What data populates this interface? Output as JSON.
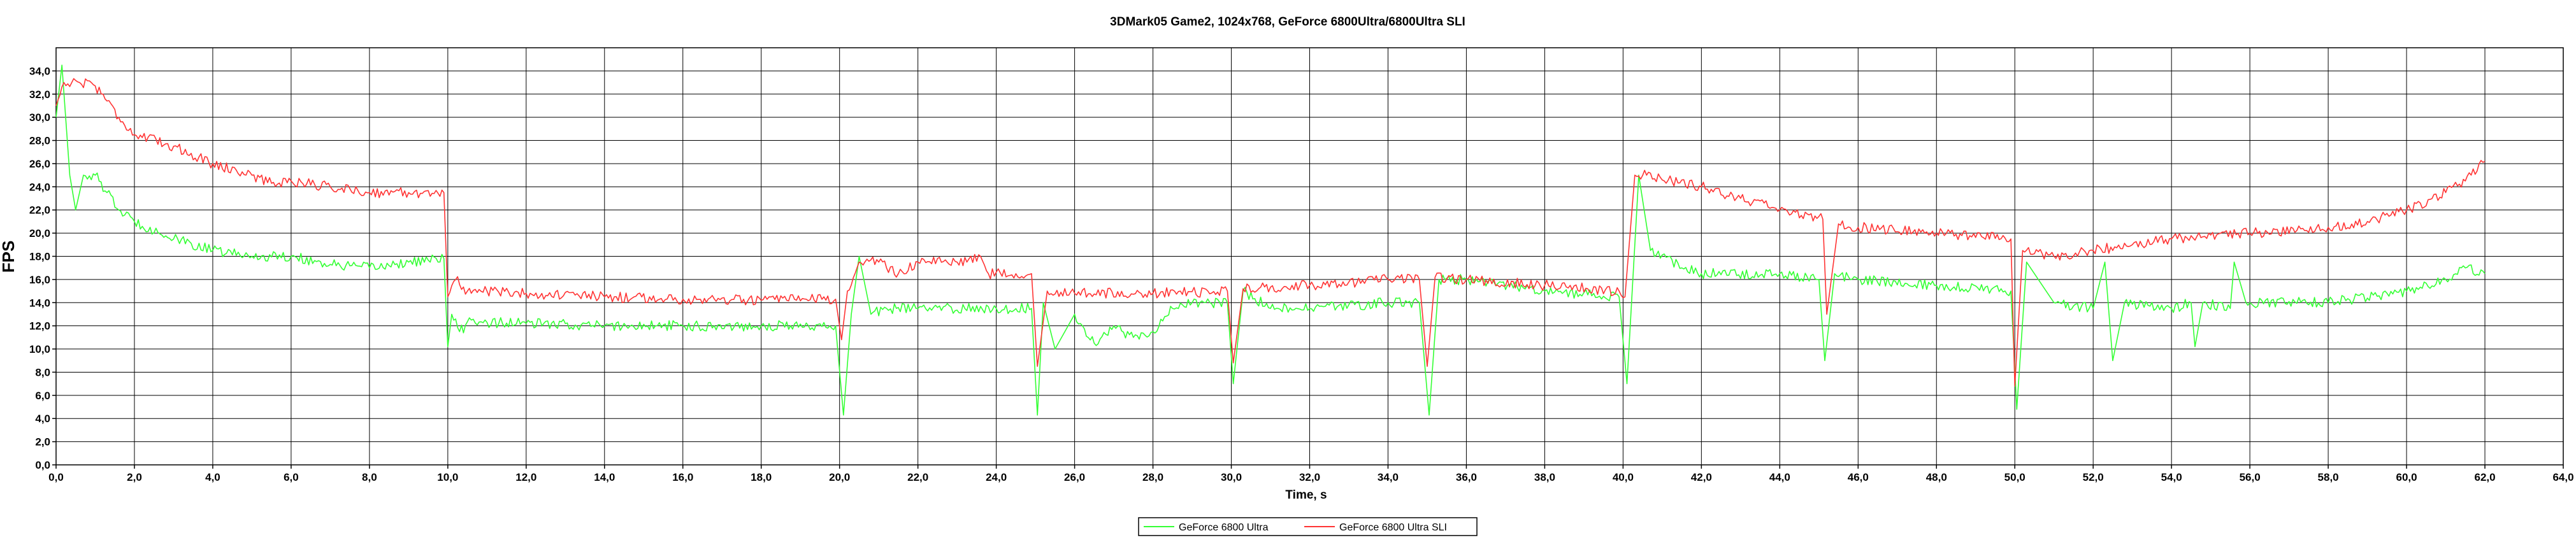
{
  "chart_data": {
    "type": "line",
    "title": "3DMark05 Game2, 1024x768, GeForce 6800Ultra/6800Ultra SLI",
    "xlabel": "Time, s",
    "ylabel": "FPS",
    "xlim": [
      0,
      64
    ],
    "ylim": [
      0,
      36
    ],
    "xticks": [
      "0,0",
      "2,0",
      "4,0",
      "6,0",
      "8,0",
      "10,0",
      "12,0",
      "14,0",
      "16,0",
      "18,0",
      "20,0",
      "22,0",
      "24,0",
      "26,0",
      "28,0",
      "30,0",
      "32,0",
      "34,0",
      "36,0",
      "38,0",
      "40,0",
      "42,0",
      "44,0",
      "46,0",
      "48,0",
      "50,0",
      "52,0",
      "54,0",
      "56,0",
      "58,0",
      "60,0",
      "62,0",
      "64,0"
    ],
    "yticks": [
      "0,0",
      "2,0",
      "4,0",
      "6,0",
      "8,0",
      "10,0",
      "12,0",
      "14,0",
      "16,0",
      "18,0",
      "20,0",
      "22,0",
      "24,0",
      "26,0",
      "28,0",
      "30,0",
      "32,0",
      "34,0"
    ],
    "grid": true,
    "legend_position": "bottom",
    "series": [
      {
        "name": "GeForce 6800 Ultra",
        "color": "#33ff33",
        "x": [
          0,
          0.15,
          0.35,
          0.5,
          0.7,
          1.0,
          1.3,
          1.6,
          2.0,
          3.0,
          4.0,
          5.0,
          6.0,
          7.0,
          8.0,
          9.0,
          9.9,
          10.0,
          10.1,
          10.3,
          10.6,
          11,
          12,
          14,
          16,
          18,
          19.9,
          20.1,
          20.3,
          20.5,
          20.8,
          21.2,
          22,
          24,
          24.9,
          25.05,
          25.2,
          25.5,
          26,
          26.5,
          27,
          27.5,
          28,
          28.5,
          29,
          29.9,
          30.05,
          30.3,
          31,
          32,
          34,
          34.8,
          35.05,
          35.3,
          36,
          38,
          39.9,
          40.1,
          40.4,
          40.7,
          41.5,
          42,
          44,
          45.0,
          45.15,
          45.4,
          46,
          48,
          49.9,
          50.05,
          50.3,
          51,
          52,
          52.3,
          52.5,
          52.8,
          54,
          54.5,
          54.6,
          54.8,
          55.5,
          55.6,
          55.9,
          56,
          58,
          60,
          61,
          61.5,
          62
        ],
        "y": [
          30,
          34.5,
          25,
          22,
          25,
          25,
          23.5,
          22,
          21,
          19.5,
          18.5,
          18,
          18,
          17.3,
          17,
          17.5,
          17.8,
          10.2,
          13,
          11.5,
          12.5,
          12.3,
          12.2,
          12,
          12,
          12,
          12,
          4.3,
          13,
          18,
          13,
          13.5,
          13.5,
          13.5,
          13.5,
          4.3,
          14,
          10,
          13,
          10.5,
          12,
          11,
          11.5,
          13.5,
          14,
          14,
          7,
          15,
          13.5,
          13.5,
          14,
          14,
          4.3,
          16,
          16,
          15,
          14.5,
          7,
          25,
          18.5,
          17,
          16.5,
          16.5,
          16,
          9,
          16.5,
          16,
          15.5,
          15,
          4.8,
          17.5,
          14,
          13.5,
          17.5,
          9,
          14,
          13.5,
          14,
          10.2,
          14,
          13.5,
          17.5,
          14,
          14,
          14,
          15,
          16,
          17,
          16.5
        ]
      },
      {
        "name": "GeForce 6800 Ultra SLI",
        "color": "#ff3333",
        "x": [
          0,
          0.2,
          0.4,
          0.6,
          0.9,
          1.2,
          1.6,
          2.0,
          3.0,
          4.0,
          5.0,
          5.5,
          6.0,
          7.0,
          8.0,
          9.0,
          9.9,
          10.0,
          10.2,
          10.5,
          11,
          12,
          14,
          16,
          18,
          19.9,
          20.05,
          20.2,
          20.5,
          21,
          21.5,
          22,
          23,
          23.6,
          23.8,
          24.5,
          24.9,
          25.05,
          25.3,
          26,
          28,
          29.9,
          30.05,
          30.3,
          32,
          34,
          34.8,
          35.0,
          35.2,
          36,
          38,
          39.9,
          40.05,
          40.3,
          40.6,
          42,
          43,
          44,
          45.1,
          45.2,
          45.5,
          46,
          48,
          49.9,
          50.0,
          50.2,
          51,
          52,
          53,
          54,
          56,
          58,
          59,
          60,
          61,
          61.5,
          62
        ],
        "y": [
          31,
          33,
          33,
          33,
          33,
          32,
          30,
          28.5,
          27.5,
          26,
          25,
          24.3,
          24.5,
          24,
          23.5,
          23.5,
          23.5,
          14.5,
          16,
          15,
          15,
          14.8,
          14.5,
          14.3,
          14.2,
          14.3,
          10.8,
          15,
          17.5,
          17.5,
          16.5,
          17.5,
          17.5,
          18,
          16.5,
          16.5,
          16.5,
          8.5,
          15,
          14.8,
          14.8,
          15,
          8.8,
          15.2,
          15.5,
          16,
          16,
          8.5,
          16.2,
          16,
          15.5,
          15,
          14.5,
          25,
          25,
          24,
          23,
          22,
          21.2,
          13,
          20.8,
          20.5,
          20,
          19.5,
          6.8,
          18.5,
          18,
          18.5,
          19,
          19.5,
          20,
          20.5,
          21,
          22,
          23.5,
          24.5,
          26.2
        ]
      }
    ]
  }
}
